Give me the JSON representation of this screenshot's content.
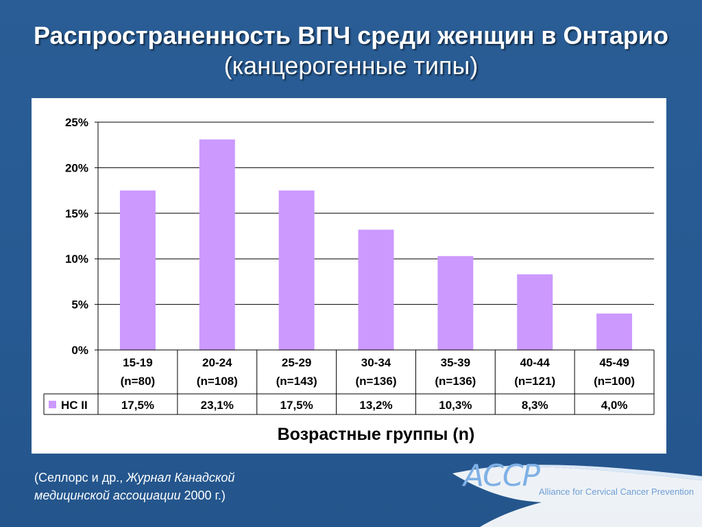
{
  "slide": {
    "title_line1": "Распространенность ВПЧ среди женщин в Онтарио",
    "title_line2": "(канцерогенные типы)",
    "citation_prefix": "(Селлорс и др., ",
    "citation_journal_1": "Журнал Канадской",
    "citation_journal_2": "медицинской ассоциации",
    "citation_suffix": " 2000 г.)",
    "logo_mark": "ACCP",
    "logo_text": "Alliance for Cervical Cancer Prevention"
  },
  "chart_data": {
    "type": "bar",
    "categories": [
      "15-19",
      "20-24",
      "25-29",
      "30-34",
      "35-39",
      "40-44",
      "45-49"
    ],
    "category_n": [
      "(n=80)",
      "(n=108)",
      "(n=143)",
      "(n=136)",
      "(n=136)",
      "(n=121)",
      "(n=100)"
    ],
    "series": [
      {
        "name": "HC II",
        "values": [
          17.5,
          23.1,
          17.5,
          13.2,
          10.3,
          8.3,
          4.0
        ],
        "value_labels": [
          "17,5%",
          "23,1%",
          "17,5%",
          "13,2%",
          "10,3%",
          "8,3%",
          "4,0%"
        ],
        "color": "#cc99ff"
      }
    ],
    "xlabel": "Возрастные группы (n)",
    "ylabel": "",
    "ylim": [
      0,
      25
    ],
    "yticks": [
      0,
      5,
      10,
      15,
      20,
      25
    ],
    "ytick_labels": [
      "0%",
      "5%",
      "10%",
      "15%",
      "20%",
      "25%"
    ],
    "grid": true,
    "legend": "data-table"
  },
  "colors": {
    "background": "#275a92",
    "bar": "#cc99ff",
    "title": "#ffffff"
  }
}
